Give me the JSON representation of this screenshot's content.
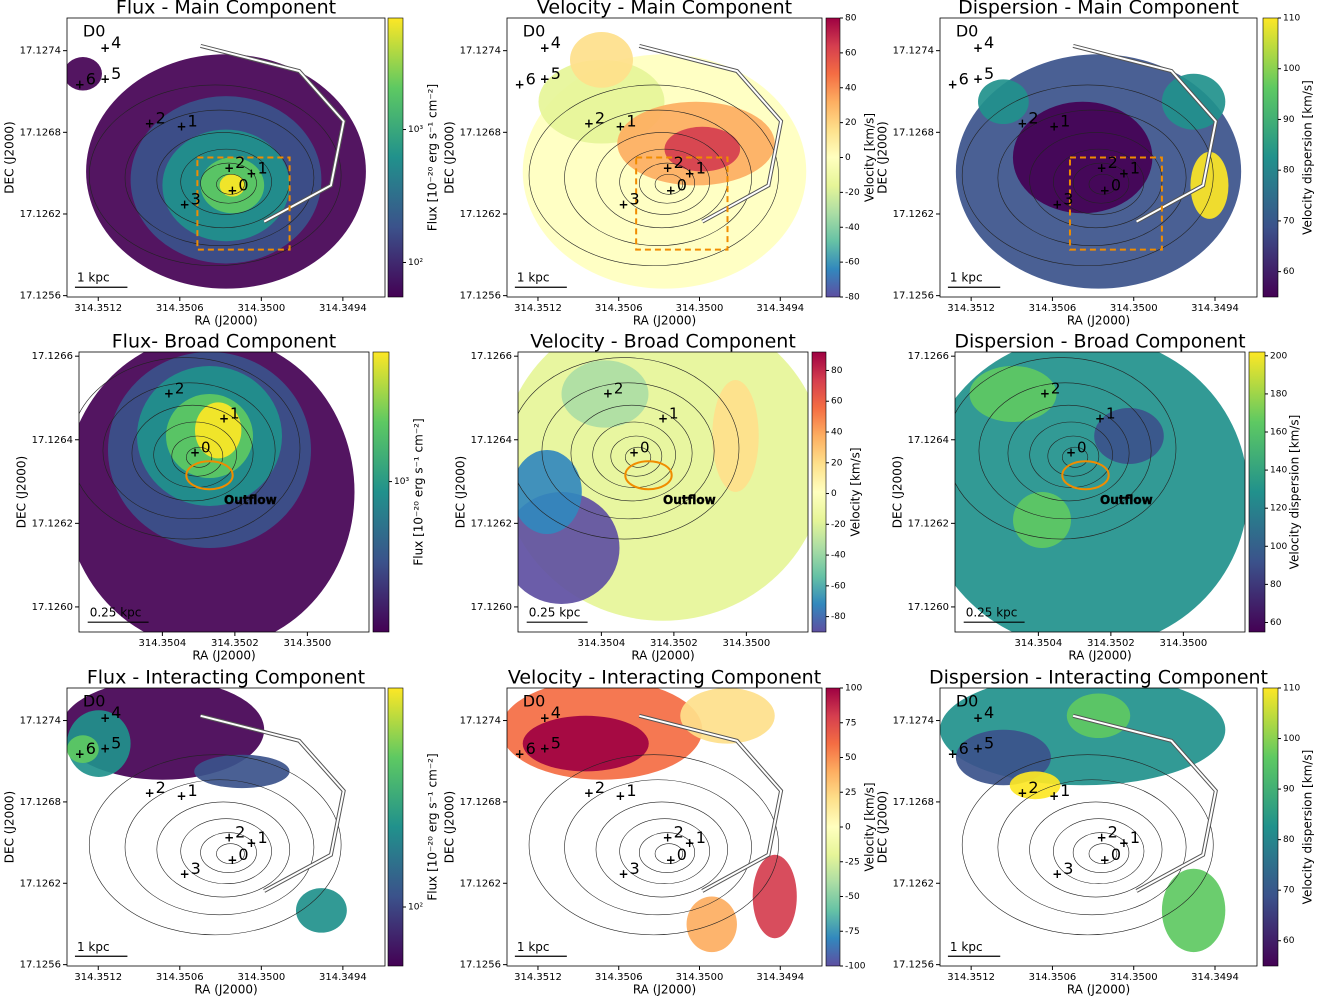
{
  "chart_data": [
    {
      "type": "map",
      "title": "Flux - Main Component",
      "xlabel": "RA (J2000)",
      "ylabel": "DEC (J2000)",
      "xlim": [
        314.35143,
        314.34909
      ],
      "ylim": [
        17.12559,
        17.12764
      ],
      "xticks": [
        314.3512,
        314.3506,
        {
          "value": 314.35,
          "label": "314.3500"
        },
        314.3494
      ],
      "yticks": [
        17.1274,
        17.1268,
        17.1262,
        17.1256
      ],
      "colorbar": {
        "label": "Flux [10⁻²⁰ erg s⁻¹ cm⁻²]",
        "log": true,
        "lim": [
          55,
          6900
        ],
        "ticks": [
          {
            "value": 1000,
            "label": "10³"
          },
          {
            "value": 100,
            "label": "10²"
          }
        ],
        "colors": [
          "#440154",
          "#3b528b",
          "#21918c",
          "#5ec962",
          "#fde725"
        ]
      },
      "scale_bar": "1 kpc",
      "region": "D0",
      "markers": [
        "4",
        "5",
        "6",
        "2",
        "1",
        "2",
        "1",
        "0",
        "3"
      ],
      "marker_colors": [
        "red",
        "red",
        "red",
        "blue",
        "blue",
        "red",
        "red",
        "blue",
        "red"
      ]
    },
    {
      "type": "map",
      "title": "Velocity - Main Component",
      "xlabel": "RA (J2000)",
      "ylabel": "DEC (J2000)",
      "xlim": [
        314.35143,
        314.34909
      ],
      "ylim": [
        17.12559,
        17.12764
      ],
      "xticks": [
        314.3512,
        314.3506,
        {
          "value": 314.35,
          "label": "314.3500"
        },
        314.3494
      ],
      "yticks": [
        17.1274,
        17.1268,
        17.1262,
        17.1256
      ],
      "colorbar": {
        "label": "Velocity [km/s]",
        "log": false,
        "lim": [
          -80,
          80
        ],
        "ticks": [
          80,
          60,
          40,
          20,
          0,
          -20,
          -40,
          -60,
          -80
        ],
        "colors": [
          "#5e4fa2",
          "#3288bd",
          "#66c2a5",
          "#abdda4",
          "#e6f598",
          "#ffffbf",
          "#fee08b",
          "#fdae61",
          "#f46d43",
          "#d53e4f",
          "#9e0142"
        ]
      },
      "scale_bar": "1 kpc",
      "region": "D0",
      "markers": [
        "4",
        "5",
        "6",
        "2",
        "1",
        "2",
        "1",
        "0",
        "3"
      ],
      "marker_colors": [
        "red",
        "red",
        "red",
        "blue",
        "blue",
        "red",
        "red",
        "blue",
        "red"
      ]
    },
    {
      "type": "map",
      "title": "Dispersion - Main Component",
      "xlabel": "RA (J2000)",
      "ylabel": "DEC (J2000)",
      "xlim": [
        314.35143,
        314.34909
      ],
      "ylim": [
        17.12559,
        17.12764
      ],
      "xticks": [
        314.3512,
        314.3506,
        {
          "value": 314.35,
          "label": "314.3500"
        },
        314.3494
      ],
      "yticks": [
        17.1274,
        17.1268,
        17.1262,
        17.1256
      ],
      "colorbar": {
        "label": "Velocity dispersion [km/s]",
        "log": false,
        "lim": [
          55,
          110
        ],
        "ticks": [
          110,
          100,
          90,
          80,
          70,
          60
        ],
        "colors": [
          "#440154",
          "#3b528b",
          "#21918c",
          "#5ec962",
          "#fde725"
        ]
      },
      "scale_bar": "1 kpc",
      "region": "D0",
      "markers": [
        "4",
        "5",
        "6",
        "2",
        "1",
        "2",
        "1",
        "0",
        "3"
      ],
      "marker_colors": [
        "red",
        "red",
        "red",
        "blue",
        "blue",
        "red",
        "red",
        "blue",
        "red"
      ]
    },
    {
      "type": "map",
      "title": "Flux- Broad Component",
      "xlabel": "RA (J2000)",
      "ylabel": "DEC (J2000)",
      "xlim": [
        314.35063,
        314.34983
      ],
      "ylim": [
        17.12594,
        17.12661
      ],
      "xticks": [
        314.3504,
        314.3502,
        {
          "value": 314.35,
          "label": "314.3500"
        }
      ],
      "yticks": [
        17.1266,
        17.1264,
        17.1262,
        {
          "value": 17.126,
          "label": "17.1260"
        }
      ],
      "colorbar": {
        "label": "Flux [10⁻²⁰ erg s⁻¹ cm⁻²]",
        "log": true,
        "lim": [
          200,
          4000
        ],
        "ticks": [
          {
            "value": 1000,
            "label": "10³"
          }
        ],
        "colors": [
          "#440154",
          "#3b528b",
          "#21918c",
          "#5ec962",
          "#fde725"
        ]
      },
      "scale_bar": "0.25 kpc",
      "annotation": "Outflow",
      "markers": [
        "2",
        "1",
        "0"
      ],
      "marker_colors": [
        "red",
        "red",
        "blue"
      ]
    },
    {
      "type": "map",
      "title": "Velocity - Broad Component",
      "xlabel": "RA (J2000)",
      "ylabel": "DEC (J2000)",
      "xlim": [
        314.35063,
        314.34983
      ],
      "ylim": [
        17.12594,
        17.12661
      ],
      "xticks": [
        314.3504,
        314.3502,
        {
          "value": 314.35,
          "label": "314.3500"
        }
      ],
      "yticks": [
        17.1266,
        17.1264,
        17.1262,
        {
          "value": 17.126,
          "label": "17.1260"
        }
      ],
      "colorbar": {
        "label": "Velocity [km/s]",
        "log": false,
        "lim": [
          -90,
          92
        ],
        "ticks": [
          80,
          60,
          40,
          20,
          0,
          -20,
          -40,
          -60,
          -80
        ],
        "colors": [
          "#5e4fa2",
          "#3288bd",
          "#66c2a5",
          "#abdda4",
          "#e6f598",
          "#ffffbf",
          "#fee08b",
          "#fdae61",
          "#f46d43",
          "#d53e4f",
          "#9e0142"
        ]
      },
      "scale_bar": "0.25 kpc",
      "annotation": "Outflow",
      "markers": [
        "2",
        "1",
        "0"
      ],
      "marker_colors": [
        "red",
        "red",
        "blue"
      ]
    },
    {
      "type": "map",
      "title": "Dispersion - Broad Component",
      "xlabel": "RA (J2000)",
      "ylabel": "DEC (J2000)",
      "xlim": [
        314.35063,
        314.34983
      ],
      "ylim": [
        17.12594,
        17.12661
      ],
      "xticks": [
        314.3504,
        314.3502,
        {
          "value": 314.35,
          "label": "314.3500"
        }
      ],
      "yticks": [
        17.1266,
        17.1264,
        17.1262,
        {
          "value": 17.126,
          "label": "17.1260"
        }
      ],
      "colorbar": {
        "label": "Velocity dispersion [km/s]",
        "log": false,
        "lim": [
          55,
          202
        ],
        "ticks": [
          200,
          180,
          160,
          140,
          120,
          100,
          80,
          60
        ],
        "colors": [
          "#440154",
          "#3b528b",
          "#21918c",
          "#5ec962",
          "#fde725"
        ]
      },
      "scale_bar": "0.25 kpc",
      "annotation": "Outflow",
      "markers": [
        "2",
        "1",
        "0"
      ],
      "marker_colors": [
        "red",
        "red",
        "blue"
      ]
    },
    {
      "type": "map",
      "title": "Flux - Interacting Component",
      "xlabel": "RA (J2000)",
      "ylabel": "DEC (J2000)",
      "xlim": [
        314.35143,
        314.34909
      ],
      "ylim": [
        17.12559,
        17.12764
      ],
      "xticks": [
        314.3512,
        314.3506,
        {
          "value": 314.35,
          "label": "314.3500"
        },
        314.3494
      ],
      "yticks": [
        17.1274,
        17.1268,
        17.1262,
        17.1256
      ],
      "colorbar": {
        "label": "Flux [10⁻²⁰ erg s⁻¹ cm⁻²]",
        "log": true,
        "lim": [
          40,
          3000
        ],
        "ticks": [
          {
            "value": 100,
            "label": "10²"
          }
        ],
        "colors": [
          "#440154",
          "#3b528b",
          "#21918c",
          "#5ec962",
          "#fde725"
        ]
      },
      "scale_bar": "1 kpc",
      "region": "D0",
      "markers": [
        "4",
        "5",
        "6",
        "2",
        "1",
        "2",
        "1",
        "0",
        "3"
      ],
      "marker_colors": [
        "red",
        "red",
        "red",
        "blue",
        "blue",
        "red",
        "red",
        "blue",
        "red"
      ]
    },
    {
      "type": "map",
      "title": "Velocity - Interacting Component",
      "xlabel": "RA (J2000)",
      "ylabel": "DEC (J2000)",
      "xlim": [
        314.35143,
        314.34909
      ],
      "ylim": [
        17.12559,
        17.12764
      ],
      "xticks": [
        314.3512,
        314.3506,
        {
          "value": 314.35,
          "label": "314.3500"
        },
        314.3494
      ],
      "yticks": [
        17.1274,
        17.1268,
        17.1262,
        17.1256
      ],
      "colorbar": {
        "label": "Velocity [km/s]",
        "log": false,
        "lim": [
          -100,
          100
        ],
        "ticks": [
          100,
          75,
          50,
          25,
          0,
          -25,
          -50,
          -75,
          -100
        ],
        "colors": [
          "#5e4fa2",
          "#3288bd",
          "#66c2a5",
          "#abdda4",
          "#e6f598",
          "#ffffbf",
          "#fee08b",
          "#fdae61",
          "#f46d43",
          "#d53e4f",
          "#9e0142"
        ]
      },
      "scale_bar": "1 kpc",
      "region": "D0",
      "markers": [
        "4",
        "5",
        "6",
        "2",
        "1",
        "2",
        "1",
        "0",
        "3"
      ],
      "marker_colors": [
        "red",
        "red",
        "red",
        "blue",
        "blue",
        "red",
        "red",
        "blue",
        "red"
      ]
    },
    {
      "type": "map",
      "title": "Dispersion - Interacting Component",
      "xlabel": "RA (J2000)",
      "ylabel": "DEC (J2000)",
      "xlim": [
        314.35143,
        314.34909
      ],
      "ylim": [
        17.12559,
        17.12764
      ],
      "xticks": [
        314.3512,
        314.3506,
        {
          "value": 314.35,
          "label": "314.3500"
        },
        314.3494
      ],
      "yticks": [
        17.1274,
        17.1268,
        17.1262,
        17.1256
      ],
      "colorbar": {
        "label": "Velocity dispersion [km/s]",
        "log": false,
        "lim": [
          55,
          110
        ],
        "ticks": [
          110,
          100,
          90,
          80,
          70,
          60
        ],
        "colors": [
          "#440154",
          "#3b528b",
          "#21918c",
          "#5ec962",
          "#fde725"
        ]
      },
      "scale_bar": "1 kpc",
      "region": "D0",
      "markers": [
        "4",
        "5",
        "6",
        "2",
        "1",
        "2",
        "1",
        "0",
        "3"
      ],
      "marker_colors": [
        "red",
        "red",
        "red",
        "blue",
        "blue",
        "red",
        "red",
        "blue",
        "red"
      ]
    }
  ]
}
